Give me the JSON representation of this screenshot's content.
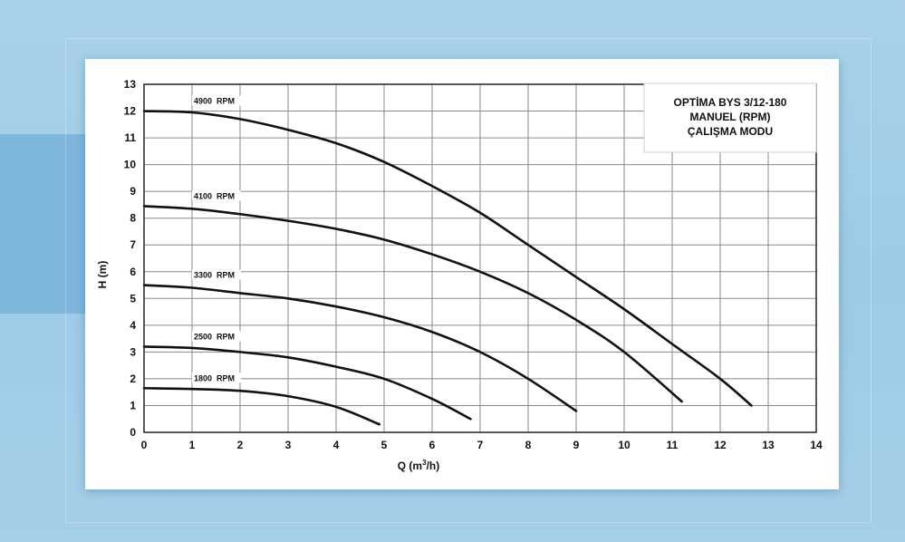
{
  "chart_data": {
    "type": "line",
    "title": [
      "OPTİMA BYS 3/12-180",
      "MANUEL (RPM)",
      "ÇALIŞMA MODU"
    ],
    "xlabel": "Q (m³/h)",
    "xlabel_main": "Q (m",
    "xlabel_sup": "3",
    "xlabel_tail": "/h)",
    "ylabel": "H (m)",
    "xlim": [
      0,
      14
    ],
    "ylim": [
      0,
      13
    ],
    "xticks": [
      "0",
      "1",
      "2",
      "3",
      "4",
      "5",
      "6",
      "7",
      "8",
      "9",
      "10",
      "11",
      "12",
      "13",
      "14"
    ],
    "yticks": [
      "0",
      "1",
      "2",
      "3",
      "4",
      "5",
      "6",
      "7",
      "8",
      "9",
      "10",
      "11",
      "12",
      "13"
    ],
    "grid": true,
    "series": [
      {
        "name": "4900  RPM",
        "x": [
          0,
          1,
          2,
          3,
          4,
          5,
          6,
          7,
          8,
          9,
          10,
          11,
          12,
          12.65
        ],
        "y": [
          12.0,
          11.95,
          11.7,
          11.3,
          10.8,
          10.1,
          9.2,
          8.2,
          7.0,
          5.8,
          4.6,
          3.3,
          2.0,
          1.0
        ]
      },
      {
        "name": "4100  RPM",
        "x": [
          0,
          1,
          2,
          3,
          4,
          5,
          6,
          7,
          8,
          9,
          10,
          11.2
        ],
        "y": [
          8.45,
          8.35,
          8.15,
          7.9,
          7.6,
          7.2,
          6.65,
          6.0,
          5.2,
          4.2,
          3.0,
          1.15
        ]
      },
      {
        "name": "3300  RPM",
        "x": [
          0,
          1,
          2,
          3,
          4,
          5,
          6,
          7,
          8,
          9
        ],
        "y": [
          5.5,
          5.4,
          5.2,
          5.0,
          4.7,
          4.3,
          3.75,
          3.0,
          2.0,
          0.8
        ]
      },
      {
        "name": "2500  RPM",
        "x": [
          0,
          1,
          2,
          3,
          4,
          5,
          6,
          6.8
        ],
        "y": [
          3.2,
          3.15,
          3.0,
          2.8,
          2.45,
          2.0,
          1.25,
          0.5
        ]
      },
      {
        "name": "1800  RPM",
        "x": [
          0,
          1,
          2,
          3,
          4,
          4.9
        ],
        "y": [
          1.65,
          1.62,
          1.55,
          1.35,
          0.95,
          0.3
        ]
      }
    ]
  }
}
